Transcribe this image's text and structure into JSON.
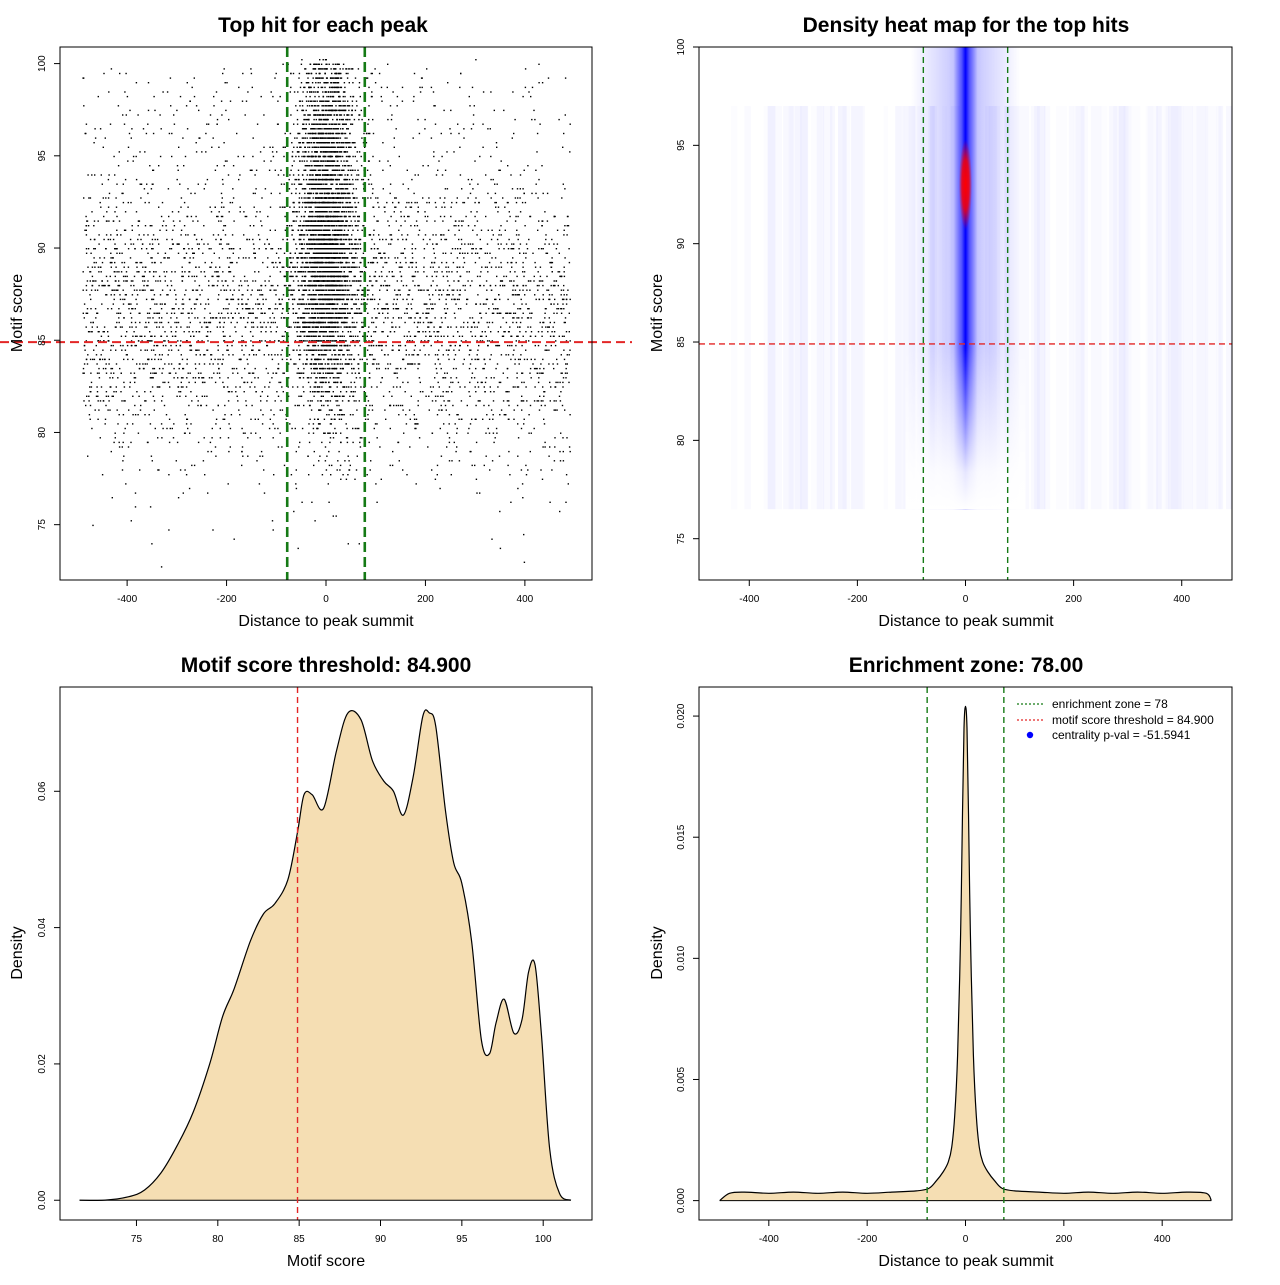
{
  "chart_data": [
    {
      "id": "scatter",
      "type": "scatter",
      "title": "Top hit for each peak",
      "xlabel": "Distance to peak summit",
      "ylabel": "Motif score",
      "xlim": [
        -535,
        535
      ],
      "ylim": [
        72.0,
        100.9
      ],
      "xticks": [
        -400,
        -200,
        0,
        200,
        400
      ],
      "yticks": [
        75,
        80,
        85,
        90,
        95,
        100
      ],
      "hline": 84.9,
      "vlines": [
        -78,
        78
      ],
      "colors": {
        "points": "#000000",
        "threshold": "#e32626",
        "zone": "#157a15"
      }
    },
    {
      "id": "heatmap",
      "type": "heatmap",
      "title": "Density heat map for the top hits",
      "xlabel": "Distance to peak summit",
      "ylabel": "Motif score",
      "xlim": [
        -493,
        493
      ],
      "ylim": [
        72.9,
        100
      ],
      "xticks": [
        -400,
        -200,
        0,
        200,
        400
      ],
      "yticks": [
        75,
        80,
        85,
        90,
        95,
        100
      ],
      "hline": 84.9,
      "vlines": [
        -78,
        78
      ],
      "hotspot": {
        "x": 0,
        "y": 93,
        "color_low": "#ffffff",
        "color_mid": "#0000ff",
        "color_high": "#ff0000"
      },
      "colors": {
        "threshold": "#e32626",
        "zone": "#157a15"
      }
    },
    {
      "id": "score-density",
      "type": "area",
      "title": "Motif score threshold: 84.900",
      "xlabel": "Motif score",
      "ylabel": "Density",
      "xlim": [
        70.3,
        103.0
      ],
      "ylim": [
        -0.0029,
        0.0753
      ],
      "xticks": [
        75,
        80,
        85,
        90,
        95,
        100
      ],
      "yticks": [
        0.0,
        0.02,
        0.04,
        0.06
      ],
      "ytick_labels": [
        "0.00",
        "0.02",
        "0.04",
        "0.06"
      ],
      "vline": 84.9,
      "x": [
        71.5,
        73,
        74.5,
        75.5,
        76.5,
        77.5,
        78.5,
        79.5,
        80.3,
        81,
        82,
        82.8,
        83.5,
        84.3,
        84.9,
        85.3,
        85.8,
        86.5,
        87.3,
        88,
        88.8,
        89.5,
        90.2,
        90.8,
        91.4,
        92,
        92.6,
        93,
        93.4,
        94,
        94.5,
        95,
        95.6,
        96.2,
        96.7,
        97.1,
        97.6,
        98.2,
        98.7,
        99.1,
        99.5,
        99.9,
        100.4,
        101,
        101.7
      ],
      "y": [
        0.0,
        0.0,
        0.0005,
        0.0015,
        0.004,
        0.008,
        0.013,
        0.02,
        0.027,
        0.031,
        0.038,
        0.042,
        0.0435,
        0.047,
        0.054,
        0.0595,
        0.0595,
        0.0575,
        0.066,
        0.0715,
        0.0705,
        0.0645,
        0.0615,
        0.06,
        0.0565,
        0.062,
        0.071,
        0.0715,
        0.0695,
        0.057,
        0.0495,
        0.0465,
        0.038,
        0.0235,
        0.0215,
        0.026,
        0.0295,
        0.0245,
        0.0265,
        0.0335,
        0.0345,
        0.024,
        0.0075,
        0.001,
        0.0
      ],
      "colors": {
        "fill": "#f5deb3",
        "line": "#000000",
        "threshold": "#e32626"
      }
    },
    {
      "id": "distance-density",
      "type": "area",
      "title": "Enrichment zone: 78.00",
      "xlabel": "Distance to peak summit",
      "ylabel": "Density",
      "xlim": [
        -542,
        542
      ],
      "ylim": [
        -0.0008,
        0.0212
      ],
      "xticks": [
        -400,
        -200,
        0,
        200,
        400
      ],
      "yticks": [
        0.0,
        0.005,
        0.01,
        0.015,
        0.02
      ],
      "ytick_labels": [
        "0.000",
        "0.005",
        "0.010",
        "0.015",
        "0.020"
      ],
      "vlines": [
        -78,
        78
      ],
      "x": [
        -500,
        -480,
        -450,
        -400,
        -350,
        -300,
        -250,
        -200,
        -150,
        -100,
        -75,
        -60,
        -45,
        -35,
        -28,
        -22,
        -16,
        -10,
        -6,
        -3,
        0,
        3,
        6,
        10,
        16,
        22,
        28,
        35,
        45,
        60,
        75,
        100,
        150,
        200,
        250,
        300,
        350,
        400,
        450,
        490,
        500
      ],
      "y": [
        0.0,
        0.0003,
        0.00035,
        0.0003,
        0.00035,
        0.0003,
        0.00035,
        0.0003,
        0.00035,
        0.0004,
        0.0005,
        0.0008,
        0.0012,
        0.0016,
        0.0022,
        0.0035,
        0.006,
        0.011,
        0.016,
        0.0195,
        0.0204,
        0.0195,
        0.016,
        0.011,
        0.006,
        0.0035,
        0.0022,
        0.0016,
        0.0012,
        0.0008,
        0.0005,
        0.0004,
        0.00035,
        0.0003,
        0.00035,
        0.0003,
        0.00035,
        0.0003,
        0.00035,
        0.0003,
        0.0
      ],
      "legend": [
        {
          "label": "enrichment zone = 78",
          "color": "#157a15",
          "kind": "dotted-line"
        },
        {
          "label": "motif score threshold = 84.900",
          "color": "#e32626",
          "kind": "dotted-line"
        },
        {
          "label": "centrality p-val = -51.5941",
          "color": "#0000ff",
          "kind": "point"
        }
      ],
      "legend_position": "top-right",
      "colors": {
        "fill": "#f5deb3",
        "line": "#000000",
        "zone": "#157a15"
      }
    }
  ]
}
